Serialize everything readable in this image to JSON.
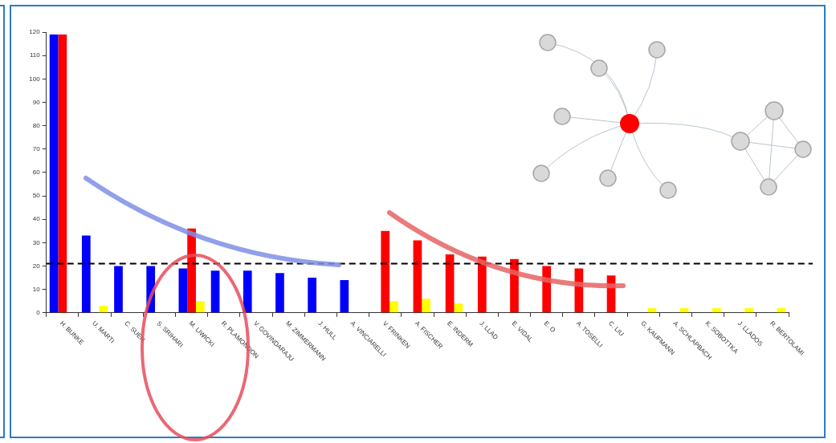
{
  "chart_data": {
    "type": "bar",
    "categories": [
      "H. BUNKE",
      "U. MARTI",
      "C. SUEN",
      "S. SRIHARI",
      "M. LIWICKI",
      "R. PLAMONDON",
      "V. GOVINDARAJU",
      "M. ZIMMERMANN",
      "J. HULL",
      "A. VINCIARELLI",
      "V. FRINKEN",
      "A. FISCHER",
      "E. INDERM",
      "J. LLAD",
      "E. VIDAL",
      "E. O",
      "A. TOSELLI",
      "C. LIU",
      "G. KAUFMANN",
      "A. SCHLAPBACH",
      "K. SOBOTTKA",
      "J. LLADOS",
      "R. BERTOLAMI"
    ],
    "series": [
      {
        "color": "#0000ff",
        "values": [
          119,
          33,
          20,
          20,
          19,
          18,
          18,
          17,
          15,
          14,
          null,
          null,
          null,
          null,
          null,
          null,
          null,
          null,
          null,
          null,
          null,
          null,
          null
        ]
      },
      {
        "color": "#ff0000",
        "values": [
          119,
          null,
          null,
          null,
          36,
          null,
          null,
          null,
          null,
          null,
          35,
          31,
          25,
          24,
          23,
          20,
          19,
          16,
          null,
          null,
          null,
          null,
          null
        ]
      },
      {
        "color": "#ffff00",
        "values": [
          null,
          3,
          null,
          null,
          5,
          null,
          null,
          null,
          null,
          null,
          5,
          6,
          4,
          null,
          null,
          null,
          null,
          null,
          2,
          2,
          2,
          2,
          2
        ]
      }
    ],
    "ylim": [
      0,
      120
    ],
    "yticks": [
      0,
      10,
      20,
      30,
      40,
      50,
      60,
      70,
      80,
      90,
      100,
      110,
      120
    ],
    "ref_lines": [
      {
        "axis": "y",
        "value": 21,
        "color": "#000000",
        "line_style": "dashed"
      }
    ]
  }
}
